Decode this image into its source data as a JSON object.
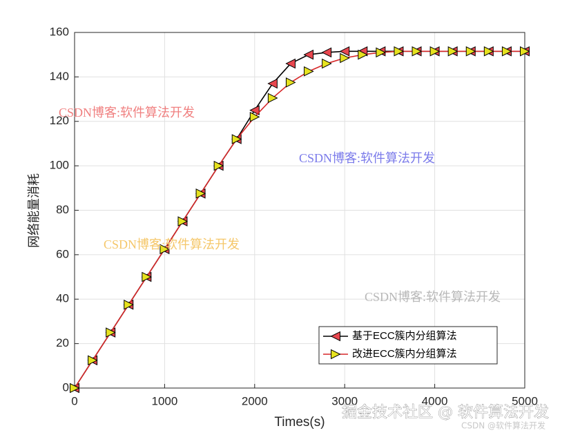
{
  "chart_data": {
    "type": "line",
    "xlabel": "Times(s)",
    "ylabel": "网络能量消耗",
    "x": [
      0,
      200,
      400,
      600,
      800,
      1000,
      1200,
      1400,
      1600,
      1800,
      2000,
      2200,
      2400,
      2600,
      2800,
      3000,
      3200,
      3400,
      3600,
      3800,
      4000,
      4200,
      4400,
      4600,
      4800,
      5000
    ],
    "series": [
      {
        "name": "基于ECC簇内分组算法",
        "color": "#000000",
        "marker_color": "#e8474f",
        "marker": "left",
        "values": [
          0,
          12.5,
          25,
          37.5,
          50,
          62.5,
          75,
          87.5,
          100,
          112,
          125,
          137,
          146,
          150,
          151,
          151.5,
          151.5,
          151.5,
          151.5,
          151.5,
          151.5,
          151.5,
          151.5,
          151.5,
          151.5,
          151.5
        ]
      },
      {
        "name": "改进ECC簇内分组算法",
        "color": "#d62728",
        "marker_color": "#e6e21f",
        "marker": "right",
        "values": [
          0,
          12.5,
          25,
          37.5,
          50,
          62.5,
          75,
          87.5,
          100,
          112,
          122,
          130.5,
          137.5,
          142.5,
          146,
          148.5,
          150,
          151,
          151.5,
          151.5,
          151.5,
          151.5,
          151.5,
          151.5,
          151.5,
          151.5
        ]
      }
    ],
    "xlim": [
      0,
      5000
    ],
    "xticks": [
      0,
      1000,
      2000,
      3000,
      4000,
      5000
    ],
    "ylim": [
      0,
      160
    ],
    "yticks": [
      0,
      20,
      40,
      60,
      80,
      100,
      120,
      140,
      160
    ],
    "grid": true,
    "legend": "lower right",
    "annotations": [
      {
        "text": "CSDN博客:软件算法开发",
        "color": "#f08080"
      },
      {
        "text": "CSDN博客:软件算法开发",
        "color": "#7b7bea"
      },
      {
        "text": "CSDN博客:软件算法开发",
        "color": "#f5c76a"
      },
      {
        "text": "CSDN博客:软件算法开发",
        "color": "#b8b8b8"
      },
      {
        "text": "掘金技术社区 @ 软件算法开发",
        "color": "#ffffff"
      },
      {
        "text": "CSDN @软件算法开发",
        "color": "#c8c8c8"
      }
    ]
  }
}
